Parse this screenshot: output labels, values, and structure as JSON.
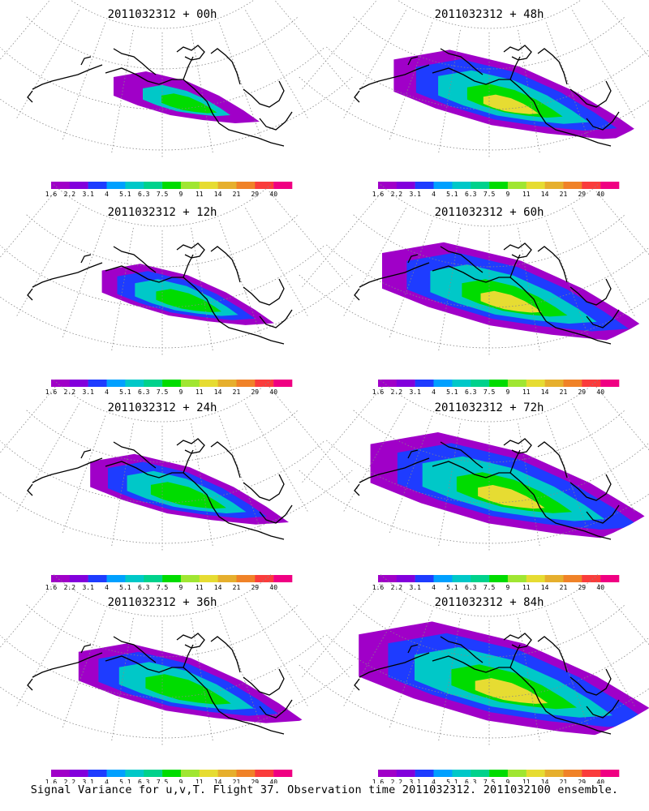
{
  "caption": "Signal Variance for u,v,T. Flight 37. Observation time 2011032312. 2011032100 ensemble.",
  "colors": {
    "levels": [
      "1.6",
      "2.2",
      "3.1",
      "4",
      "5.1",
      "6.3",
      "7.5",
      "9",
      "11",
      "14",
      "21",
      "29",
      "40"
    ],
    "fills": [
      "#a000c8",
      "#8200dc",
      "#1e3cff",
      "#00a0ff",
      "#00c8c8",
      "#00d28c",
      "#00dc00",
      "#a0e632",
      "#e6dc32",
      "#e6af2d",
      "#f08228",
      "#fa3c3c",
      "#f00082"
    ],
    "coast": "#000000",
    "grid": "#888888"
  },
  "panels": [
    {
      "title": "2011032312 + 00h"
    },
    {
      "title": "2011032312 + 48h"
    },
    {
      "title": "2011032312 + 12h"
    },
    {
      "title": "2011032312 + 60h"
    },
    {
      "title": "2011032312 + 24h"
    },
    {
      "title": "2011032312 + 72h"
    },
    {
      "title": "2011032312 + 36h"
    },
    {
      "title": "2011032312 + 84h"
    }
  ],
  "chart_data": {
    "type": "heatmap",
    "figure": "8 polar stereographic map panels (North Pacific / North America sector) of ensemble signal variance for u,v,T",
    "panels": [
      "+ 00h",
      "+ 12h",
      "+ 24h",
      "+ 36h",
      "+ 48h",
      "+ 60h",
      "+ 72h",
      "+ 84h"
    ],
    "base_time": "2011032312",
    "colorbar_levels": [
      1.6,
      2.2,
      3.1,
      4,
      5.1,
      6.3,
      7.5,
      9,
      11,
      14,
      21,
      29,
      40
    ],
    "layout": "4 rows x 2 columns, colorbar under each panel",
    "grid": true
  }
}
